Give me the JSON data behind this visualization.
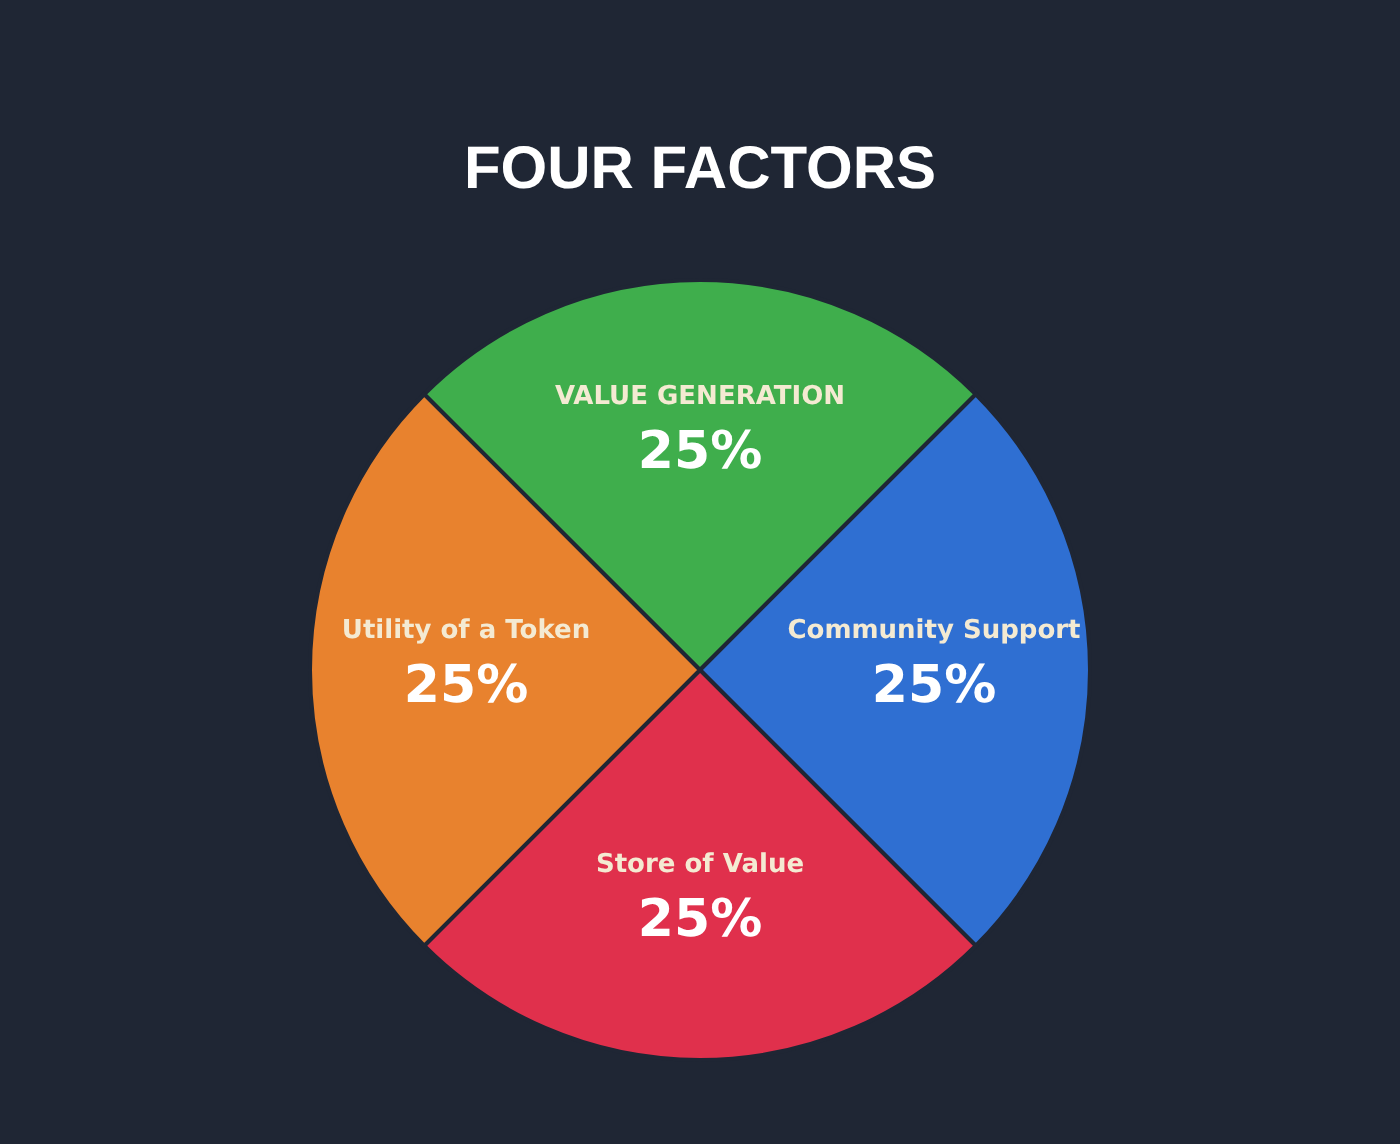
{
  "chart_data": {
    "type": "pie",
    "title": "FOUR FACTORS",
    "categories": [
      "VALUE GENERATION",
      "Community Support",
      "Store of Value",
      "Utility of a Token"
    ],
    "values": [
      25,
      25,
      25,
      25
    ],
    "colors": [
      "#3fae4c",
      "#2f6fd2",
      "#e0304c",
      "#e8822e"
    ],
    "value_labels": [
      "25%",
      "25%",
      "25%",
      "25%"
    ],
    "legend": false
  }
}
